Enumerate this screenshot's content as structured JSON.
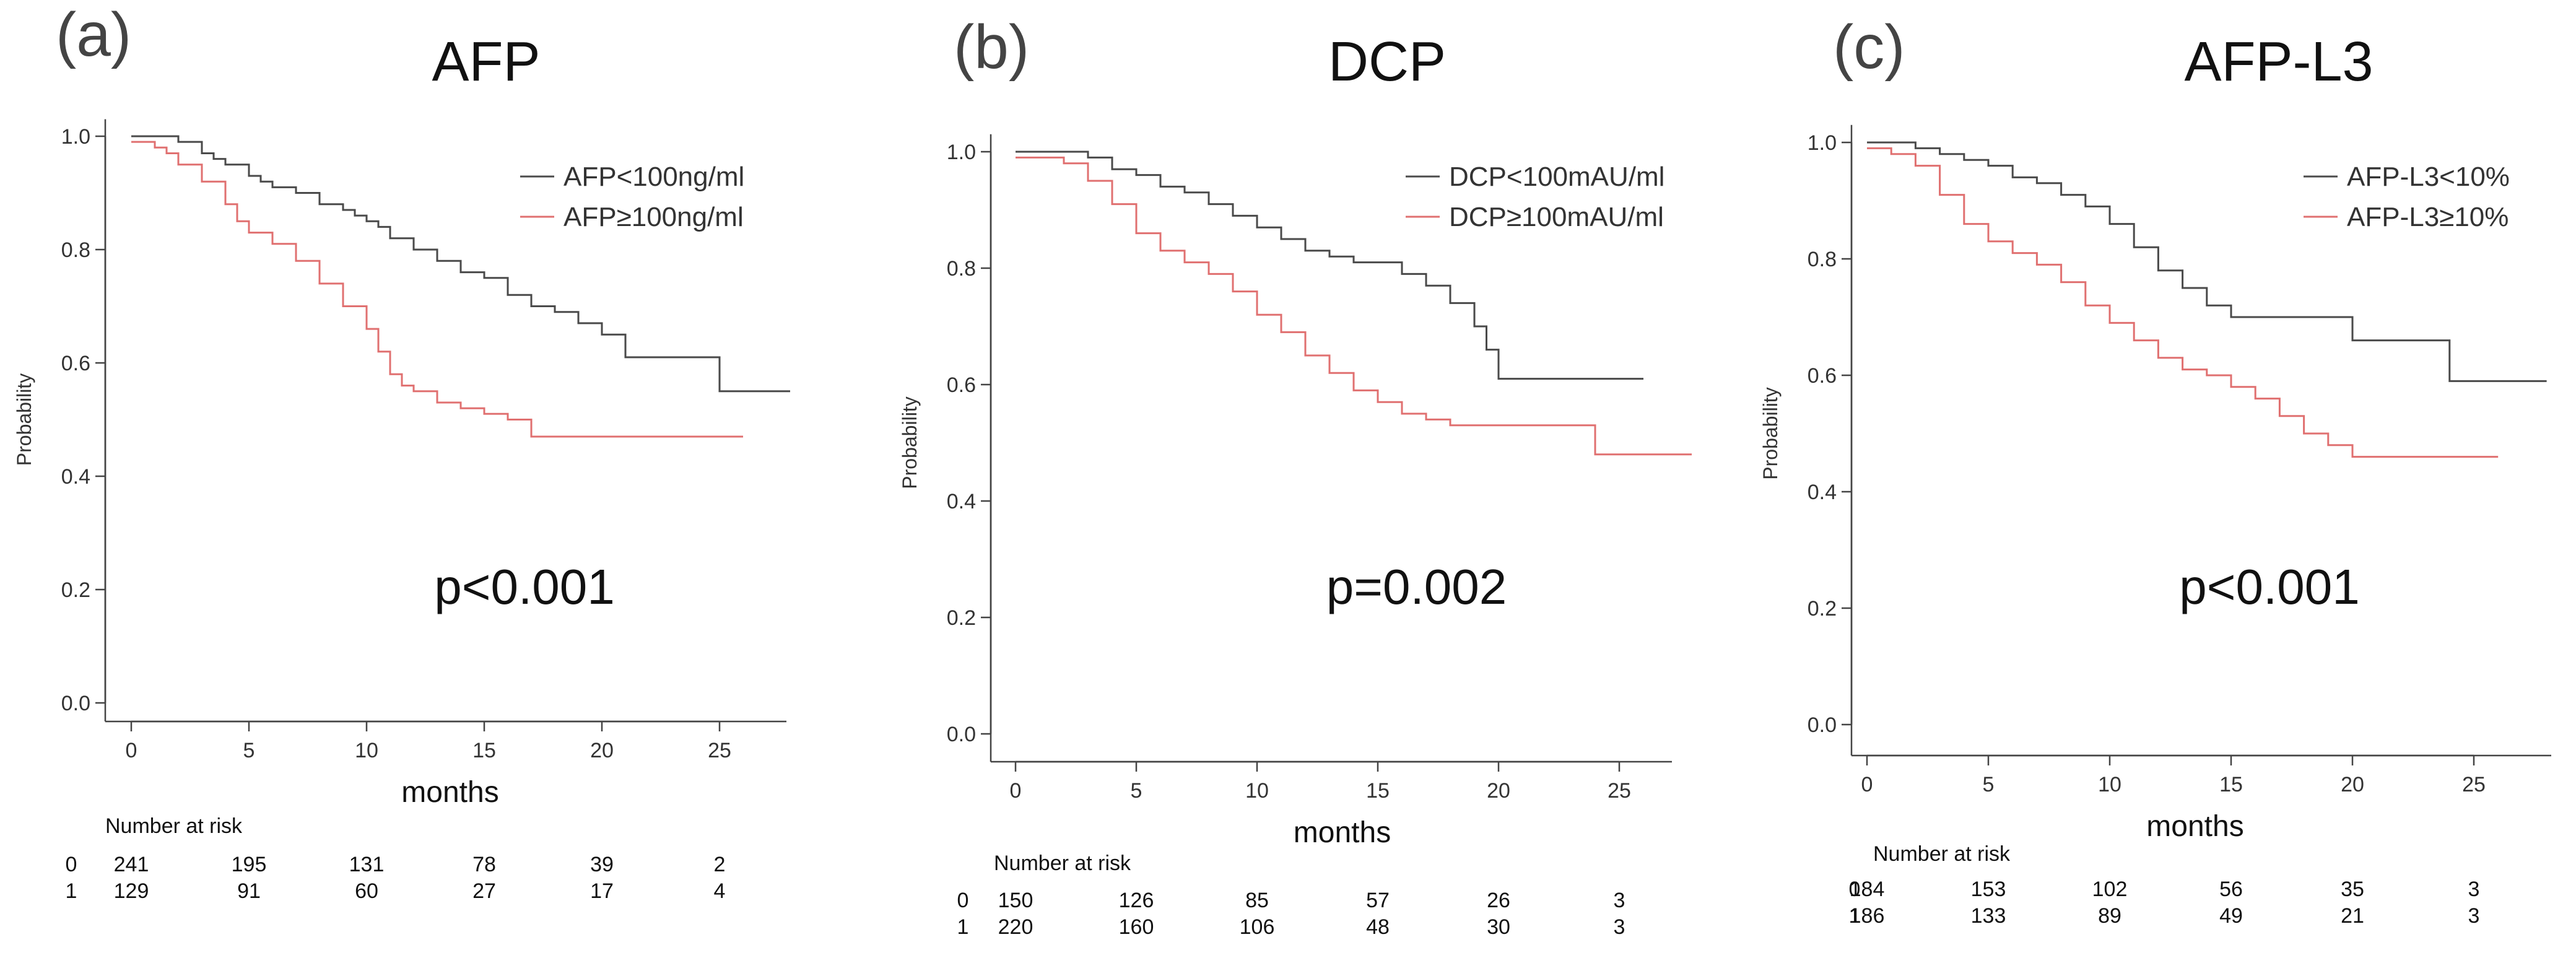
{
  "chart_data": [
    {
      "type": "line",
      "panel": "(a)",
      "title": "AFP",
      "xlabel": "months",
      "ylabel": "Probability",
      "xlim": [
        -1,
        28
      ],
      "ylim": [
        0,
        1.03
      ],
      "xticks": [
        "0",
        "5",
        "10",
        "15",
        "20",
        "25"
      ],
      "yticks": [
        "0.0",
        "0.2",
        "0.4",
        "0.6",
        "0.8",
        "1.0"
      ],
      "p_value": "p<0.001",
      "series": [
        {
          "name": "AFP<100ng/ml",
          "color": "#4a4a4a",
          "x": [
            0,
            1,
            2,
            3,
            3.5,
            4,
            5,
            5.5,
            6,
            7,
            8,
            9,
            9.5,
            10,
            10.5,
            11,
            12,
            13,
            14,
            15,
            16,
            17,
            18,
            19,
            20,
            21,
            22,
            23,
            24,
            25,
            26,
            27,
            28
          ],
          "y": [
            1.0,
            1.0,
            0.99,
            0.97,
            0.96,
            0.95,
            0.93,
            0.92,
            0.91,
            0.9,
            0.88,
            0.87,
            0.86,
            0.85,
            0.84,
            0.82,
            0.8,
            0.78,
            0.76,
            0.75,
            0.72,
            0.7,
            0.69,
            0.67,
            0.65,
            0.61,
            0.61,
            0.61,
            0.61,
            0.55,
            0.55,
            0.55,
            0.55
          ]
        },
        {
          "name": "AFP≥100ng/ml",
          "color": "#e07070",
          "x": [
            0,
            1,
            1.5,
            2,
            3,
            4,
            4.5,
            5,
            6,
            7,
            8,
            9,
            10,
            10.5,
            11,
            11.5,
            12,
            13,
            14,
            15,
            16,
            17,
            18,
            19,
            20,
            21,
            22,
            23,
            24,
            25,
            26
          ],
          "y": [
            0.99,
            0.98,
            0.97,
            0.95,
            0.92,
            0.88,
            0.85,
            0.83,
            0.81,
            0.78,
            0.74,
            0.7,
            0.66,
            0.62,
            0.58,
            0.56,
            0.55,
            0.53,
            0.52,
            0.51,
            0.5,
            0.47,
            0.47,
            0.47,
            0.47,
            0.47,
            0.47,
            0.47,
            0.47,
            0.47,
            0.47
          ]
        }
      ],
      "risk_table": {
        "label": "Number at risk",
        "rows": [
          {
            "group": "0",
            "values": [
              "241",
              "195",
              "131",
              "78",
              "39",
              "2"
            ]
          },
          {
            "group": "1",
            "values": [
              "129",
              "91",
              "60",
              "27",
              "17",
              "4"
            ]
          }
        ]
      }
    },
    {
      "type": "line",
      "panel": "(b)",
      "title": "DCP",
      "xlabel": "months",
      "ylabel": "Probability",
      "xlim": [
        -1,
        28
      ],
      "ylim": [
        0,
        1.03
      ],
      "xticks": [
        "0",
        "5",
        "10",
        "15",
        "20",
        "25"
      ],
      "yticks": [
        "0.0",
        "0.2",
        "0.4",
        "0.6",
        "0.8",
        "1.0"
      ],
      "p_value": "p=0.002",
      "series": [
        {
          "name": "DCP<100mAU/ml",
          "color": "#4a4a4a",
          "x": [
            0,
            1,
            2,
            3,
            4,
            5,
            6,
            7,
            8,
            9,
            10,
            11,
            12,
            13,
            14,
            15,
            16,
            17,
            18,
            19,
            19.5,
            20,
            21,
            22,
            23,
            24,
            25,
            26
          ],
          "y": [
            1.0,
            1.0,
            1.0,
            0.99,
            0.97,
            0.96,
            0.94,
            0.93,
            0.91,
            0.89,
            0.87,
            0.85,
            0.83,
            0.82,
            0.81,
            0.81,
            0.79,
            0.77,
            0.74,
            0.7,
            0.66,
            0.61,
            0.61,
            0.61,
            0.61,
            0.61,
            0.61,
            0.61
          ]
        },
        {
          "name": "DCP≥100mAU/ml",
          "color": "#e07070",
          "x": [
            0,
            1,
            2,
            3,
            4,
            5,
            6,
            7,
            8,
            9,
            10,
            11,
            12,
            13,
            14,
            15,
            16,
            17,
            18,
            19,
            20,
            21,
            22,
            23,
            24,
            25,
            26,
            27,
            28
          ],
          "y": [
            0.99,
            0.99,
            0.98,
            0.95,
            0.91,
            0.86,
            0.83,
            0.81,
            0.79,
            0.76,
            0.72,
            0.69,
            0.65,
            0.62,
            0.59,
            0.57,
            0.55,
            0.54,
            0.53,
            0.53,
            0.53,
            0.53,
            0.53,
            0.53,
            0.48,
            0.48,
            0.48,
            0.48,
            0.48
          ]
        }
      ],
      "risk_table": {
        "label": "Number at risk",
        "rows": [
          {
            "group": "0",
            "values": [
              "150",
              "126",
              "85",
              "57",
              "26",
              "3"
            ]
          },
          {
            "group": "1",
            "values": [
              "220",
              "160",
              "106",
              "48",
              "30",
              "3"
            ]
          }
        ]
      }
    },
    {
      "type": "line",
      "panel": "(c)",
      "title": "AFP-L3",
      "xlabel": "months",
      "ylabel": "Probability",
      "xlim": [
        -1,
        28
      ],
      "ylim": [
        0,
        1.03
      ],
      "xticks": [
        "0",
        "5",
        "10",
        "15",
        "20",
        "25"
      ],
      "yticks": [
        "0.0",
        "0.2",
        "0.4",
        "0.6",
        "0.8",
        "1.0"
      ],
      "p_value": "p<0.001",
      "series": [
        {
          "name": "AFP-L3<10%",
          "color": "#4a4a4a",
          "x": [
            0,
            1,
            2,
            3,
            4,
            5,
            6,
            7,
            8,
            9,
            10,
            11,
            12,
            13,
            14,
            15,
            16,
            17,
            18,
            19,
            20,
            21,
            22,
            23,
            24,
            25,
            26,
            27,
            28
          ],
          "y": [
            1.0,
            1.0,
            0.99,
            0.98,
            0.97,
            0.96,
            0.94,
            0.93,
            0.91,
            0.89,
            0.86,
            0.82,
            0.78,
            0.75,
            0.72,
            0.7,
            0.7,
            0.7,
            0.7,
            0.7,
            0.66,
            0.66,
            0.66,
            0.66,
            0.59,
            0.59,
            0.59,
            0.59,
            0.59
          ]
        },
        {
          "name": "AFP-L3≥10%",
          "color": "#e07070",
          "x": [
            0,
            1,
            2,
            3,
            4,
            5,
            6,
            7,
            8,
            9,
            10,
            11,
            12,
            13,
            14,
            15,
            16,
            17,
            18,
            19,
            20,
            21,
            22,
            23,
            24,
            25,
            26
          ],
          "y": [
            0.99,
            0.98,
            0.96,
            0.91,
            0.86,
            0.83,
            0.81,
            0.79,
            0.76,
            0.72,
            0.69,
            0.66,
            0.63,
            0.61,
            0.6,
            0.58,
            0.56,
            0.53,
            0.5,
            0.48,
            0.46,
            0.46,
            0.46,
            0.46,
            0.46,
            0.46,
            0.46
          ]
        }
      ],
      "risk_table": {
        "label": "Number at risk",
        "rows": [
          {
            "group": "0",
            "values": [
              "184",
              "153",
              "102",
              "56",
              "35",
              "3"
            ]
          },
          {
            "group": "1",
            "values": [
              "186",
              "133",
              "89",
              "49",
              "21",
              "3"
            ]
          }
        ]
      }
    }
  ]
}
